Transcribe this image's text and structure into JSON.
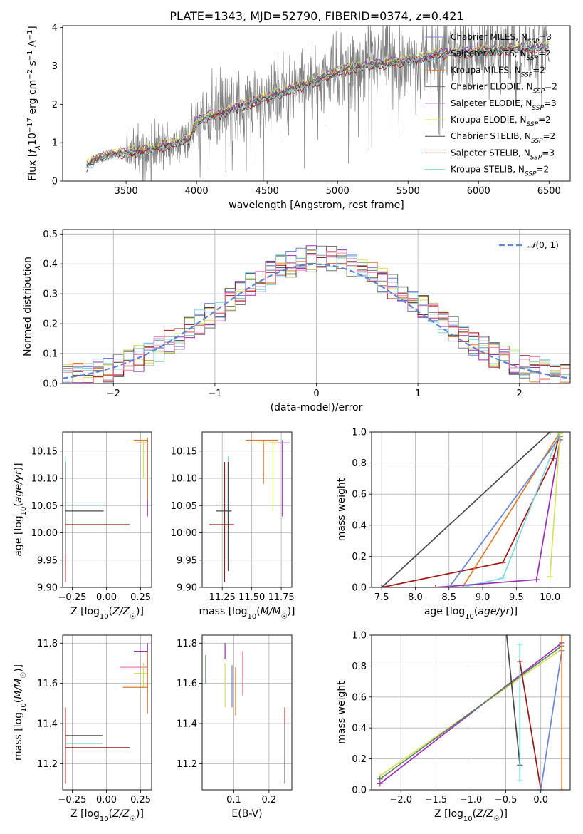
{
  "title": "PLATE=1343, MJD=52790, FIBERID=0374, z=0.421",
  "colors": {
    "Chabrier MILES": "#6b86d6",
    "Salpeter MILES": "#7a7f8f",
    "Kroupa MILES": "#e07b2a",
    "Chabrier ELODIE": "#5f7f67",
    "Salpeter ELODIE": "#9b2fb8",
    "Kroupa ELODIE": "#d4e356",
    "Chabrier STELIB": "#484848",
    "Salpeter STELIB": "#a31515",
    "Kroupa STELIB": "#7fd8e0",
    "pink": "#f07aa6",
    "data": "#808080",
    "normal": "#5b85d4"
  },
  "chart_data": [
    {
      "id": "spectrum",
      "type": "line",
      "xlabel": "wavelength [Angstrom, rest frame]",
      "ylabel": "Flux [f_λ 10^-17 erg cm^-2 s^-1 A^-1]",
      "xlim": [
        3050,
        6650
      ],
      "ylim": [
        0,
        4.05
      ],
      "xticks": [
        3500,
        4000,
        4500,
        5000,
        5500,
        6000,
        6500
      ],
      "yticks": [
        0,
        1,
        2,
        3,
        4
      ],
      "legend_position": "upper right",
      "legend": [
        "Chabrier MILES, N_SSP=3",
        "Salpeter MILES, N_SSP=2",
        "Kroupa MILES, N_SSP=2",
        "Chabrier ELODIE, N_SSP=2",
        "Salpeter ELODIE, N_SSP=3",
        "Kroupa ELODIE, N_SSP=2",
        "Chabrier STELIB, N_SSP=2",
        "Salpeter STELIB, N_SSP=3",
        "Kroupa STELIB, N_SSP=2"
      ],
      "legend_labels": [
        {
          "name": "Chabrier MILES",
          "n": "3"
        },
        {
          "name": "Salpeter MILES",
          "n": "2"
        },
        {
          "name": "Kroupa MILES",
          "n": "2"
        },
        {
          "name": "Chabrier ELODIE",
          "n": "2"
        },
        {
          "name": "Salpeter ELODIE",
          "n": "3"
        },
        {
          "name": "Kroupa ELODIE",
          "n": "2"
        },
        {
          "name": "Chabrier STELIB",
          "n": "2"
        },
        {
          "name": "Salpeter STELIB",
          "n": "3"
        },
        {
          "name": "Kroupa STELIB",
          "n": "2"
        }
      ],
      "model_continuum": {
        "x": [
          3220,
          3300,
          3400,
          3500,
          3600,
          3700,
          3800,
          3900,
          3950,
          4000,
          4100,
          4200,
          4300,
          4400,
          4500,
          4600,
          4700,
          4800,
          4900,
          5000,
          5100,
          5200,
          5300,
          5400,
          5500,
          5600,
          5700,
          5800,
          5900,
          6000,
          6100,
          6200,
          6300,
          6400,
          6500
        ],
        "y": [
          0.4,
          0.6,
          0.7,
          0.75,
          0.8,
          0.85,
          0.95,
          1.05,
          1.1,
          1.55,
          1.7,
          1.8,
          1.95,
          2.05,
          2.2,
          2.3,
          2.45,
          2.55,
          2.7,
          2.85,
          2.95,
          3.0,
          3.05,
          3.1,
          3.15,
          3.2,
          3.3,
          3.35,
          3.35,
          3.4,
          3.4,
          3.45,
          3.45,
          3.5,
          3.5
        ]
      }
    },
    {
      "id": "residuals",
      "type": "histogram",
      "xlabel": "(data-model)/error",
      "ylabel": "Normed distribution",
      "xlim": [
        -2.5,
        2.5
      ],
      "ylim": [
        0,
        0.515
      ],
      "xticks": [
        -2,
        -1,
        0,
        1,
        2
      ],
      "yticks": [
        0.0,
        0.1,
        0.2,
        0.3,
        0.4,
        0.5
      ],
      "legend": "N(0,1)",
      "legend_position": "upper right",
      "bins": [
        -2.5,
        -2.4,
        -2.3,
        -2.2,
        -2.1,
        -2.0,
        -1.9,
        -1.8,
        -1.7,
        -1.6,
        -1.5,
        -1.4,
        -1.3,
        -1.2,
        -1.1,
        -1.0,
        -0.9,
        -0.8,
        -0.7,
        -0.6,
        -0.5,
        -0.4,
        -0.3,
        -0.2,
        -0.1,
        0.0,
        0.1,
        0.2,
        0.3,
        0.4,
        0.5,
        0.6,
        0.7,
        0.8,
        0.9,
        1.0,
        1.1,
        1.2,
        1.3,
        1.4,
        1.5,
        1.6,
        1.7,
        1.8,
        1.9,
        2.0,
        2.1,
        2.2,
        2.3,
        2.4,
        2.5
      ],
      "reference_values": [
        0.017,
        0.022,
        0.028,
        0.035,
        0.044,
        0.054,
        0.066,
        0.079,
        0.094,
        0.111,
        0.13,
        0.15,
        0.171,
        0.194,
        0.218,
        0.242,
        0.266,
        0.29,
        0.312,
        0.333,
        0.352,
        0.368,
        0.381,
        0.391,
        0.397,
        0.399,
        0.397,
        0.391,
        0.381,
        0.368,
        0.352,
        0.333,
        0.312,
        0.29,
        0.266,
        0.242,
        0.218,
        0.194,
        0.171,
        0.15,
        0.13,
        0.111,
        0.094,
        0.079,
        0.066,
        0.054,
        0.044,
        0.035,
        0.028,
        0.022
      ]
    },
    {
      "id": "age_vs_Z",
      "type": "errorbar",
      "xlabel": "Z [log10(Z/Z☉)]",
      "ylabel": "age [log10(age/yr)]",
      "xlim": [
        -0.32,
        0.33
      ],
      "ylim": [
        9.9,
        10.185
      ],
      "xticks": [
        -0.25,
        0.0,
        0.25
      ],
      "yticks": [
        9.9,
        9.95,
        10.0,
        10.05,
        10.1,
        10.15
      ],
      "points": [
        {
          "series": "Kroupa STELIB",
          "x": -0.3,
          "y": 10.055,
          "x_from": -0.3,
          "x_to": -0.01,
          "y_from": 9.96,
          "y_to": 10.14
        },
        {
          "series": "Chabrier STELIB",
          "x": -0.3,
          "y": 10.04,
          "x_from": -0.3,
          "x_to": -0.02,
          "y_from": 9.96,
          "y_to": 10.13
        },
        {
          "series": "Salpeter STELIB",
          "x": -0.3,
          "y": 10.015,
          "x_from": -0.3,
          "x_to": 0.17,
          "y_from": 9.91,
          "y_to": 9.96
        },
        {
          "series": "Salpeter ELODIE",
          "x": 0.3,
          "y": 10.165,
          "x_from": 0.22,
          "x_to": 0.3,
          "y_from": 10.03,
          "y_to": 10.17
        },
        {
          "series": "Kroupa MILES",
          "x": 0.3,
          "y": 10.17,
          "x_from": 0.2,
          "x_to": 0.3,
          "y_from": 10.06,
          "y_to": 10.175
        },
        {
          "series": "Kroupa ELODIE",
          "x": 0.27,
          "y": 10.165,
          "x_from": 0.22,
          "x_to": 0.3,
          "y_from": 10.1,
          "y_to": 10.17
        }
      ]
    },
    {
      "id": "age_vs_mass",
      "type": "errorbar",
      "xlabel": "mass [log10(M/M☉)]",
      "ylabel": "",
      "xlim": [
        11.08,
        11.84
      ],
      "ylim": [
        9.9,
        10.185
      ],
      "xticks": [
        11.25,
        11.5,
        11.75
      ],
      "yticks": [
        9.9,
        9.95,
        10.0,
        10.05,
        10.1,
        10.15
      ],
      "points": [
        {
          "series": "Kroupa STELIB",
          "x": 11.3,
          "y": 10.055,
          "x_from": 11.22,
          "x_to": 11.33,
          "y_from": 9.95,
          "y_to": 10.14
        },
        {
          "series": "Chabrier STELIB",
          "x": 11.3,
          "y": 10.04,
          "x_from": 11.2,
          "x_to": 11.33,
          "y_from": 9.93,
          "y_to": 10.13
        },
        {
          "series": "Salpeter STELIB",
          "x": 11.27,
          "y": 10.015,
          "x_from": 11.14,
          "x_to": 11.35,
          "y_from": 9.91,
          "y_to": 10.13
        },
        {
          "series": "Salpeter ELODIE",
          "x": 11.76,
          "y": 10.165,
          "x_from": 11.65,
          "x_to": 11.82,
          "y_from": 10.03,
          "y_to": 10.17
        },
        {
          "series": "Kroupa MILES",
          "x": 11.6,
          "y": 10.17,
          "x_from": 11.45,
          "x_to": 11.72,
          "y_from": 10.09,
          "y_to": 10.17
        },
        {
          "series": "Kroupa ELODIE",
          "x": 11.68,
          "y": 10.165,
          "x_from": 11.55,
          "x_to": 11.72,
          "y_from": 10.04,
          "y_to": 10.17
        }
      ]
    },
    {
      "id": "cum_mass_vs_age",
      "type": "line",
      "xlabel": "age [log10(age/yr)]",
      "ylabel": "mass weight",
      "xlim": [
        7.35,
        10.3
      ],
      "ylim": [
        0,
        1
      ],
      "xticks": [
        7.5,
        8.0,
        8.5,
        9.0,
        9.5,
        10.0
      ],
      "yticks": [
        0.0,
        0.2,
        0.4,
        0.6,
        0.8,
        1.0
      ],
      "series": [
        {
          "name": "Chabrier STELIB",
          "x": [
            7.5,
            10.0
          ],
          "y": [
            0.0,
            1.0
          ]
        },
        {
          "name": "Salpeter STELIB",
          "x": [
            7.5,
            9.3,
            10.05,
            10.15
          ],
          "y": [
            0.0,
            0.16,
            0.83,
            1.0
          ]
        },
        {
          "name": "Kroupa MILES",
          "x": [
            8.7,
            10.15
          ],
          "y": [
            0.0,
            1.0
          ]
        },
        {
          "name": "Kroupa STELIB",
          "x": [
            8.7,
            9.3,
            10.15
          ],
          "y": [
            0.0,
            0.06,
            1.0
          ]
        },
        {
          "name": "Salpeter ELODIE",
          "x": [
            8.3,
            9.8,
            10.15
          ],
          "y": [
            0.0,
            0.05,
            0.95
          ]
        },
        {
          "name": "Chabrier MILES",
          "x": [
            8.5,
            10.15
          ],
          "y": [
            0.0,
            0.97
          ]
        },
        {
          "name": "Kroupa ELODIE",
          "x": [
            10.0,
            10.15
          ],
          "y": [
            0.07,
            0.99
          ]
        }
      ]
    },
    {
      "id": "mass_vs_Z",
      "type": "errorbar",
      "xlabel": "Z [log10(Z/Z☉)]",
      "ylabel": "mass [log10(M/M☉)]",
      "xlim": [
        -0.32,
        0.33
      ],
      "ylim": [
        11.07,
        11.84
      ],
      "xticks": [
        -0.25,
        0.0,
        0.25
      ],
      "yticks": [
        11.2,
        11.4,
        11.6,
        11.8
      ],
      "points": [
        {
          "series": "Chabrier STELIB",
          "x": -0.3,
          "y": 11.34,
          "x_from": -0.3,
          "x_to": -0.03,
          "y_from": 11.2,
          "y_to": 11.4
        },
        {
          "series": "Kroupa STELIB",
          "x": -0.3,
          "y": 11.3,
          "x_from": -0.3,
          "x_to": -0.03,
          "y_from": 11.1,
          "y_to": 11.4
        },
        {
          "series": "Salpeter STELIB",
          "x": -0.3,
          "y": 11.28,
          "x_from": -0.3,
          "x_to": 0.17,
          "y_from": 11.1,
          "y_to": 11.48
        },
        {
          "series": "Salpeter ELODIE",
          "x": 0.3,
          "y": 11.76,
          "x_from": 0.2,
          "x_to": 0.3,
          "y_from": 11.68,
          "y_to": 11.8
        },
        {
          "series": "pink",
          "x": 0.3,
          "y": 11.68,
          "x_from": 0.1,
          "x_to": 0.3,
          "y_from": 11.55,
          "y_to": 11.76
        },
        {
          "series": "Kroupa ELODIE",
          "x": 0.27,
          "y": 11.65,
          "x_from": 0.2,
          "x_to": 0.3,
          "y_from": 11.58,
          "y_to": 11.7
        },
        {
          "series": "Kroupa MILES",
          "x": 0.3,
          "y": 11.58,
          "x_from": 0.12,
          "x_to": 0.3,
          "y_from": 11.45,
          "y_to": 11.76
        }
      ]
    },
    {
      "id": "mass_vs_ebv",
      "type": "errorbar",
      "xlabel": "E(B-V)",
      "ylabel": "",
      "xlim": [
        0.01,
        0.265
      ],
      "ylim": [
        11.07,
        11.84
      ],
      "xticks": [
        0.1,
        0.2
      ],
      "yticks": [
        11.2,
        11.4,
        11.6,
        11.8
      ],
      "points": [
        {
          "series": "Chabrier ELODIE",
          "x": 0.02,
          "y": 11.67,
          "y_from": 11.6,
          "y_to": 11.74
        },
        {
          "series": "Salpeter ELODIE",
          "x": 0.075,
          "y": 11.76,
          "y_from": 11.72,
          "y_to": 11.8
        },
        {
          "series": "Kroupa ELODIE",
          "x": 0.075,
          "y": 11.6,
          "y_from": 11.48,
          "y_to": 11.7
        },
        {
          "series": "Chabrier MILES",
          "x": 0.095,
          "y": 11.6,
          "y_from": 11.48,
          "y_to": 11.69
        },
        {
          "series": "Kroupa MILES",
          "x": 0.105,
          "y": 11.56,
          "y_from": 11.44,
          "y_to": 11.68
        },
        {
          "series": "pink",
          "x": 0.125,
          "y": 11.64,
          "y_from": 11.54,
          "y_to": 11.76
        },
        {
          "series": "Salpeter STELIB",
          "x": 0.245,
          "y": 11.28,
          "y_from": 11.1,
          "y_to": 11.48
        },
        {
          "series": "Chabrier STELIB",
          "x": 0.245,
          "y": 11.25,
          "y_from": 11.1,
          "y_to": 11.4
        }
      ]
    },
    {
      "id": "cum_mass_vs_Z",
      "type": "line",
      "xlabel": "Z [log10(Z/Z☉)]",
      "ylabel": "mass weight",
      "xlim": [
        -2.42,
        0.42
      ],
      "ylim": [
        0,
        1
      ],
      "xticks": [
        -2.0,
        -1.5,
        -1.0,
        -0.5,
        0.0
      ],
      "yticks": [
        0.0,
        0.2,
        0.4,
        0.6,
        0.8,
        1.0
      ],
      "series": [
        {
          "name": "Kroupa ELODIE",
          "x": [
            -2.3,
            0.3
          ],
          "y": [
            0.09,
            0.91
          ]
        },
        {
          "name": "Salpeter ELODIE",
          "x": [
            -2.3,
            0.3
          ],
          "y": [
            0.04,
            0.95
          ]
        },
        {
          "name": "Chabrier ELODIE",
          "x": [
            -2.3,
            0.3
          ],
          "y": [
            0.07,
            0.93
          ]
        },
        {
          "name": "Chabrier STELIB",
          "x": [
            -0.3,
            -0.5
          ],
          "y": [
            0.16,
            1.05
          ]
        },
        {
          "name": "Kroupa STELIB",
          "x": [
            -0.3,
            -0.3
          ],
          "y": [
            0.06,
            0.94
          ]
        },
        {
          "name": "Salpeter STELIB",
          "x": [
            -0.3,
            0.0
          ],
          "y": [
            0.83,
            0.0
          ]
        },
        {
          "name": "Chabrier MILES",
          "x": [
            0.0,
            0.3
          ],
          "y": [
            0.0,
            0.9
          ]
        },
        {
          "name": "Kroupa MILES",
          "x": [
            0.3,
            0.3
          ],
          "y": [
            0.0,
            1.0
          ]
        }
      ]
    }
  ]
}
